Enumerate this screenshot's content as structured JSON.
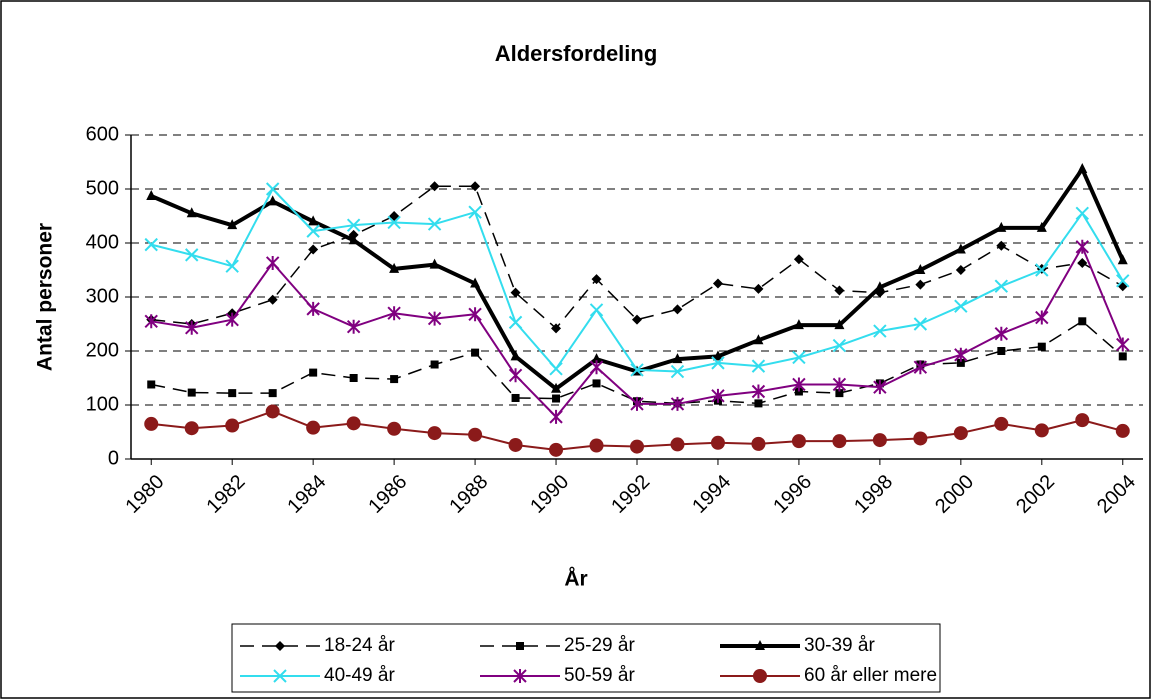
{
  "chart_data": {
    "type": "line",
    "title": "Aldersfordeling",
    "x_label": "År",
    "y_label": "Antal personer",
    "categories": [
      1980,
      null,
      1982,
      null,
      1984,
      null,
      1986,
      null,
      1988,
      null,
      1990,
      null,
      1992,
      null,
      1994,
      null,
      1996,
      null,
      1998,
      null,
      2000,
      null,
      2002,
      null,
      2004
    ],
    "ylim": [
      0,
      600
    ],
    "yticks": [
      0,
      100,
      200,
      300,
      400,
      500,
      600
    ],
    "grid": true,
    "legend": "bottom",
    "series": [
      {
        "name": "18-24 år",
        "color": "#000000",
        "dash": "dashed",
        "marker": "diamond",
        "width": 1.5,
        "values": [
          258,
          250,
          270,
          295,
          388,
          415,
          450,
          505,
          505,
          308,
          242,
          333,
          258,
          277,
          325,
          315,
          370,
          312,
          308,
          323,
          350,
          395,
          352,
          363,
          320
        ]
      },
      {
        "name": "25-29 år",
        "color": "#000000",
        "dash": "dashed",
        "marker": "square",
        "width": 1.5,
        "values": [
          138,
          123,
          122,
          122,
          160,
          150,
          148,
          175,
          197,
          113,
          112,
          140,
          107,
          103,
          108,
          103,
          125,
          122,
          140,
          175,
          178,
          200,
          208,
          255,
          190
        ]
      },
      {
        "name": "30-39 år",
        "color": "#000000",
        "dash": "solid",
        "marker": "triangle",
        "width": 4,
        "values": [
          487,
          455,
          433,
          477,
          440,
          405,
          352,
          360,
          325,
          190,
          130,
          185,
          162,
          185,
          190,
          220,
          248,
          248,
          318,
          350,
          388,
          428,
          428,
          537,
          368
        ]
      },
      {
        "name": "40-49 år",
        "color": "#33ddee",
        "dash": "solid",
        "marker": "x",
        "width": 2,
        "values": [
          397,
          378,
          357,
          500,
          422,
          433,
          438,
          435,
          457,
          253,
          167,
          276,
          165,
          162,
          178,
          172,
          188,
          210,
          237,
          250,
          283,
          320,
          350,
          455,
          330
        ]
      },
      {
        "name": "50-59 år",
        "color": "#800080",
        "dash": "solid",
        "marker": "star",
        "width": 2,
        "values": [
          255,
          243,
          258,
          363,
          278,
          245,
          270,
          260,
          268,
          155,
          78,
          170,
          102,
          102,
          117,
          125,
          138,
          138,
          133,
          170,
          193,
          232,
          262,
          393,
          212
        ]
      },
      {
        "name": "60 år eller mere",
        "color": "#8b1a1a",
        "dash": "solid",
        "marker": "circle",
        "width": 2,
        "values": [
          65,
          57,
          62,
          88,
          58,
          66,
          56,
          48,
          45,
          26,
          17,
          25,
          23,
          27,
          30,
          28,
          33,
          33,
          35,
          38,
          48,
          65,
          53,
          72,
          52
        ]
      }
    ]
  }
}
